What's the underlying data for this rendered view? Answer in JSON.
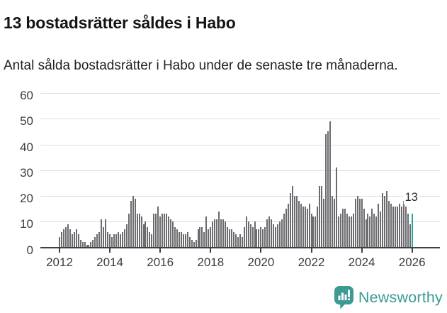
{
  "header": {
    "title": "13 bostadsrätter såldes i Habo",
    "subtitle": "Antal sålda bostadsrätter i Habo under de senaste tre månaderna."
  },
  "chart_data": {
    "type": "bar",
    "title": "13 bostadsrätter såldes i Habo",
    "subtitle": "Antal sålda bostadsrätter i Habo under de senaste tre månaderna.",
    "frequency": "monthly",
    "x_start": "2012-01",
    "x_tick_labels": [
      "2012",
      "2014",
      "2016",
      "2018",
      "2020",
      "2022",
      "2024",
      "2026"
    ],
    "y_ticks": [
      0,
      10,
      20,
      30,
      40,
      50,
      60
    ],
    "ylim": [
      0,
      60
    ],
    "grid": true,
    "legend_position": "none",
    "bar_color": "#6b6b70",
    "highlight_color": "#2aa5a1",
    "values": [
      4,
      6,
      7,
      8,
      9,
      7,
      5,
      6,
      7,
      5,
      3,
      2,
      2,
      1,
      1,
      2,
      3,
      4,
      5,
      6,
      11,
      8,
      11,
      6,
      5,
      4,
      5,
      5,
      6,
      5,
      6,
      7,
      9,
      13,
      18,
      20,
      19,
      13,
      13,
      12,
      9,
      10,
      8,
      6,
      5,
      13,
      13,
      16,
      12,
      13,
      13,
      13,
      12,
      11,
      10,
      8,
      7,
      6,
      6,
      5,
      5,
      6,
      4,
      3,
      2,
      3,
      7,
      8,
      8,
      6,
      12,
      7,
      8,
      10,
      11,
      11,
      14,
      11,
      11,
      10,
      8,
      7,
      7,
      6,
      5,
      4,
      5,
      4,
      8,
      12,
      10,
      9,
      8,
      10,
      7,
      7,
      8,
      7,
      8,
      11,
      12,
      11,
      9,
      8,
      9,
      10,
      11,
      13,
      15,
      17,
      21,
      24,
      20,
      20,
      18,
      17,
      16,
      16,
      15,
      17,
      13,
      12,
      12,
      16,
      24,
      24,
      19,
      44,
      45,
      49,
      20,
      19,
      31,
      12,
      13,
      15,
      15,
      13,
      12,
      12,
      13,
      19,
      20,
      19,
      19,
      15,
      11,
      13,
      12,
      15,
      13,
      12,
      17,
      14,
      21,
      20,
      22,
      18,
      17,
      16,
      16,
      16,
      17,
      16,
      18,
      16,
      13,
      9,
      13
    ],
    "highlight": {
      "index": 168,
      "value": 13,
      "label": "13"
    }
  },
  "footer": {
    "brand": "Newsworthy",
    "brand_color": "#3b9a94",
    "logo_icon": "bar-chart-speech-bubble-icon"
  }
}
